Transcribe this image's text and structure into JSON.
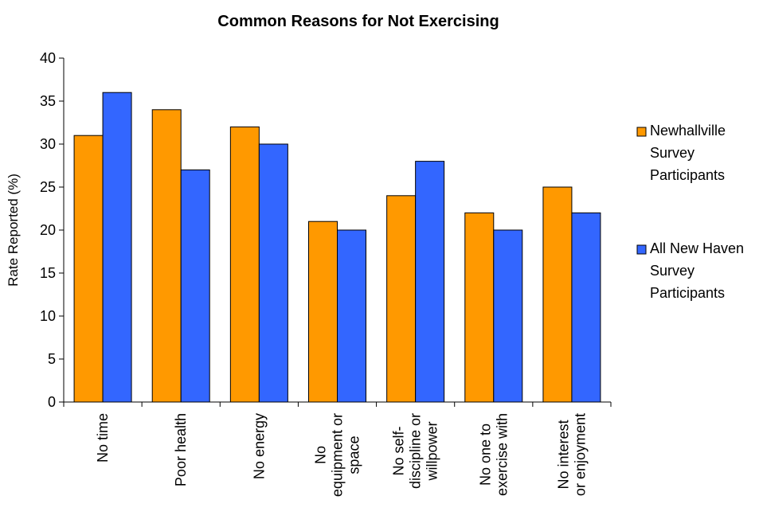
{
  "chart_data": {
    "type": "bar",
    "title": "Common Reasons for Not Exercising",
    "xlabel": "",
    "ylabel": "Rate Reported (%)",
    "ylim": [
      0,
      40
    ],
    "yticks": [
      "0",
      "5",
      "10",
      "15",
      "20",
      "25",
      "30",
      "35",
      "40"
    ],
    "categories": [
      [
        "No time"
      ],
      [
        "Poor health"
      ],
      [
        "No energy"
      ],
      [
        "No",
        "equipment or",
        "space"
      ],
      [
        "No self-",
        "discipline or",
        "willpower"
      ],
      [
        "No one to",
        "exercise with"
      ],
      [
        "No interest",
        "or enjoyment"
      ]
    ],
    "series": [
      {
        "name": [
          "Newhallville",
          "Survey",
          "Participants"
        ],
        "color": "#ff9900",
        "values": [
          31,
          34,
          32,
          21,
          24,
          22,
          25
        ]
      },
      {
        "name": [
          "All New Haven",
          "Survey",
          "Participants"
        ],
        "color": "#3366ff",
        "values": [
          36,
          27,
          30,
          20,
          28,
          20,
          22
        ]
      }
    ],
    "grid": false,
    "legend": "right"
  }
}
